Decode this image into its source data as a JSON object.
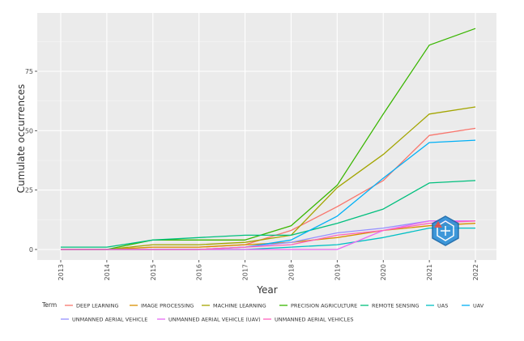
{
  "chart_data": {
    "type": "line",
    "title": "",
    "xlabel": "Year",
    "ylabel": "Cumulate occurrences",
    "x": [
      2013,
      2014,
      2015,
      2016,
      2017,
      2018,
      2019,
      2020,
      2021,
      2022
    ],
    "x_tick_labels": [
      "2013",
      "2014",
      "2015",
      "2016",
      "2017",
      "2018",
      "2019",
      "2020",
      "2021",
      "2022"
    ],
    "yticks": [
      0,
      25,
      50,
      75
    ],
    "y_tick_labels": [
      "0",
      "25",
      "50",
      "75"
    ],
    "xlim": [
      2013,
      2022
    ],
    "ylim": [
      -2.5,
      97
    ],
    "grid": true,
    "legend_title": "Term",
    "legend_position": "bottom",
    "series": [
      {
        "name": "DEEP LEARNING",
        "color": "#F8766D",
        "values": [
          0,
          0,
          1,
          1,
          2,
          8,
          18,
          29,
          48,
          51
        ]
      },
      {
        "name": "IMAGE PROCESSING",
        "color": "#D89000",
        "values": [
          0,
          0,
          1,
          1,
          2,
          3,
          5,
          8,
          10,
          11
        ]
      },
      {
        "name": "MACHINE LEARNING",
        "color": "#A3A500",
        "values": [
          0,
          0,
          2,
          2,
          3,
          6,
          26,
          40,
          57,
          60
        ]
      },
      {
        "name": "PRECISION AGRICULTURE",
        "color": "#39B600",
        "values": [
          0,
          0,
          4,
          4,
          4,
          10,
          27,
          57,
          86,
          93
        ]
      },
      {
        "name": "REMOTE SENSING",
        "color": "#00BF7D",
        "values": [
          1,
          1,
          4,
          5,
          6,
          6,
          11,
          17,
          28,
          29
        ]
      },
      {
        "name": "UAS",
        "color": "#00BFC4",
        "values": [
          0,
          0,
          0,
          0,
          0,
          1,
          2,
          5,
          9,
          9
        ]
      },
      {
        "name": "UAV",
        "color": "#00B0F6",
        "values": [
          0,
          0,
          0,
          0,
          1,
          4,
          14,
          30,
          45,
          46
        ]
      },
      {
        "name": "UNMANNED AERIAL VEHICLE",
        "color": "#9590FF",
        "values": [
          0,
          0,
          0,
          0,
          1,
          3,
          7,
          9,
          12,
          12
        ]
      },
      {
        "name": "UNMANNED AERIAL VEHICLE (UAV)",
        "color": "#E76BF3",
        "values": [
          0,
          0,
          0,
          0,
          0,
          0,
          0,
          8,
          12,
          12
        ]
      },
      {
        "name": "UNMANNED AERIAL VEHICLES",
        "color": "#FF62BC",
        "values": [
          0,
          0,
          0,
          0,
          1,
          2,
          6,
          8,
          11,
          12
        ]
      }
    ]
  }
}
